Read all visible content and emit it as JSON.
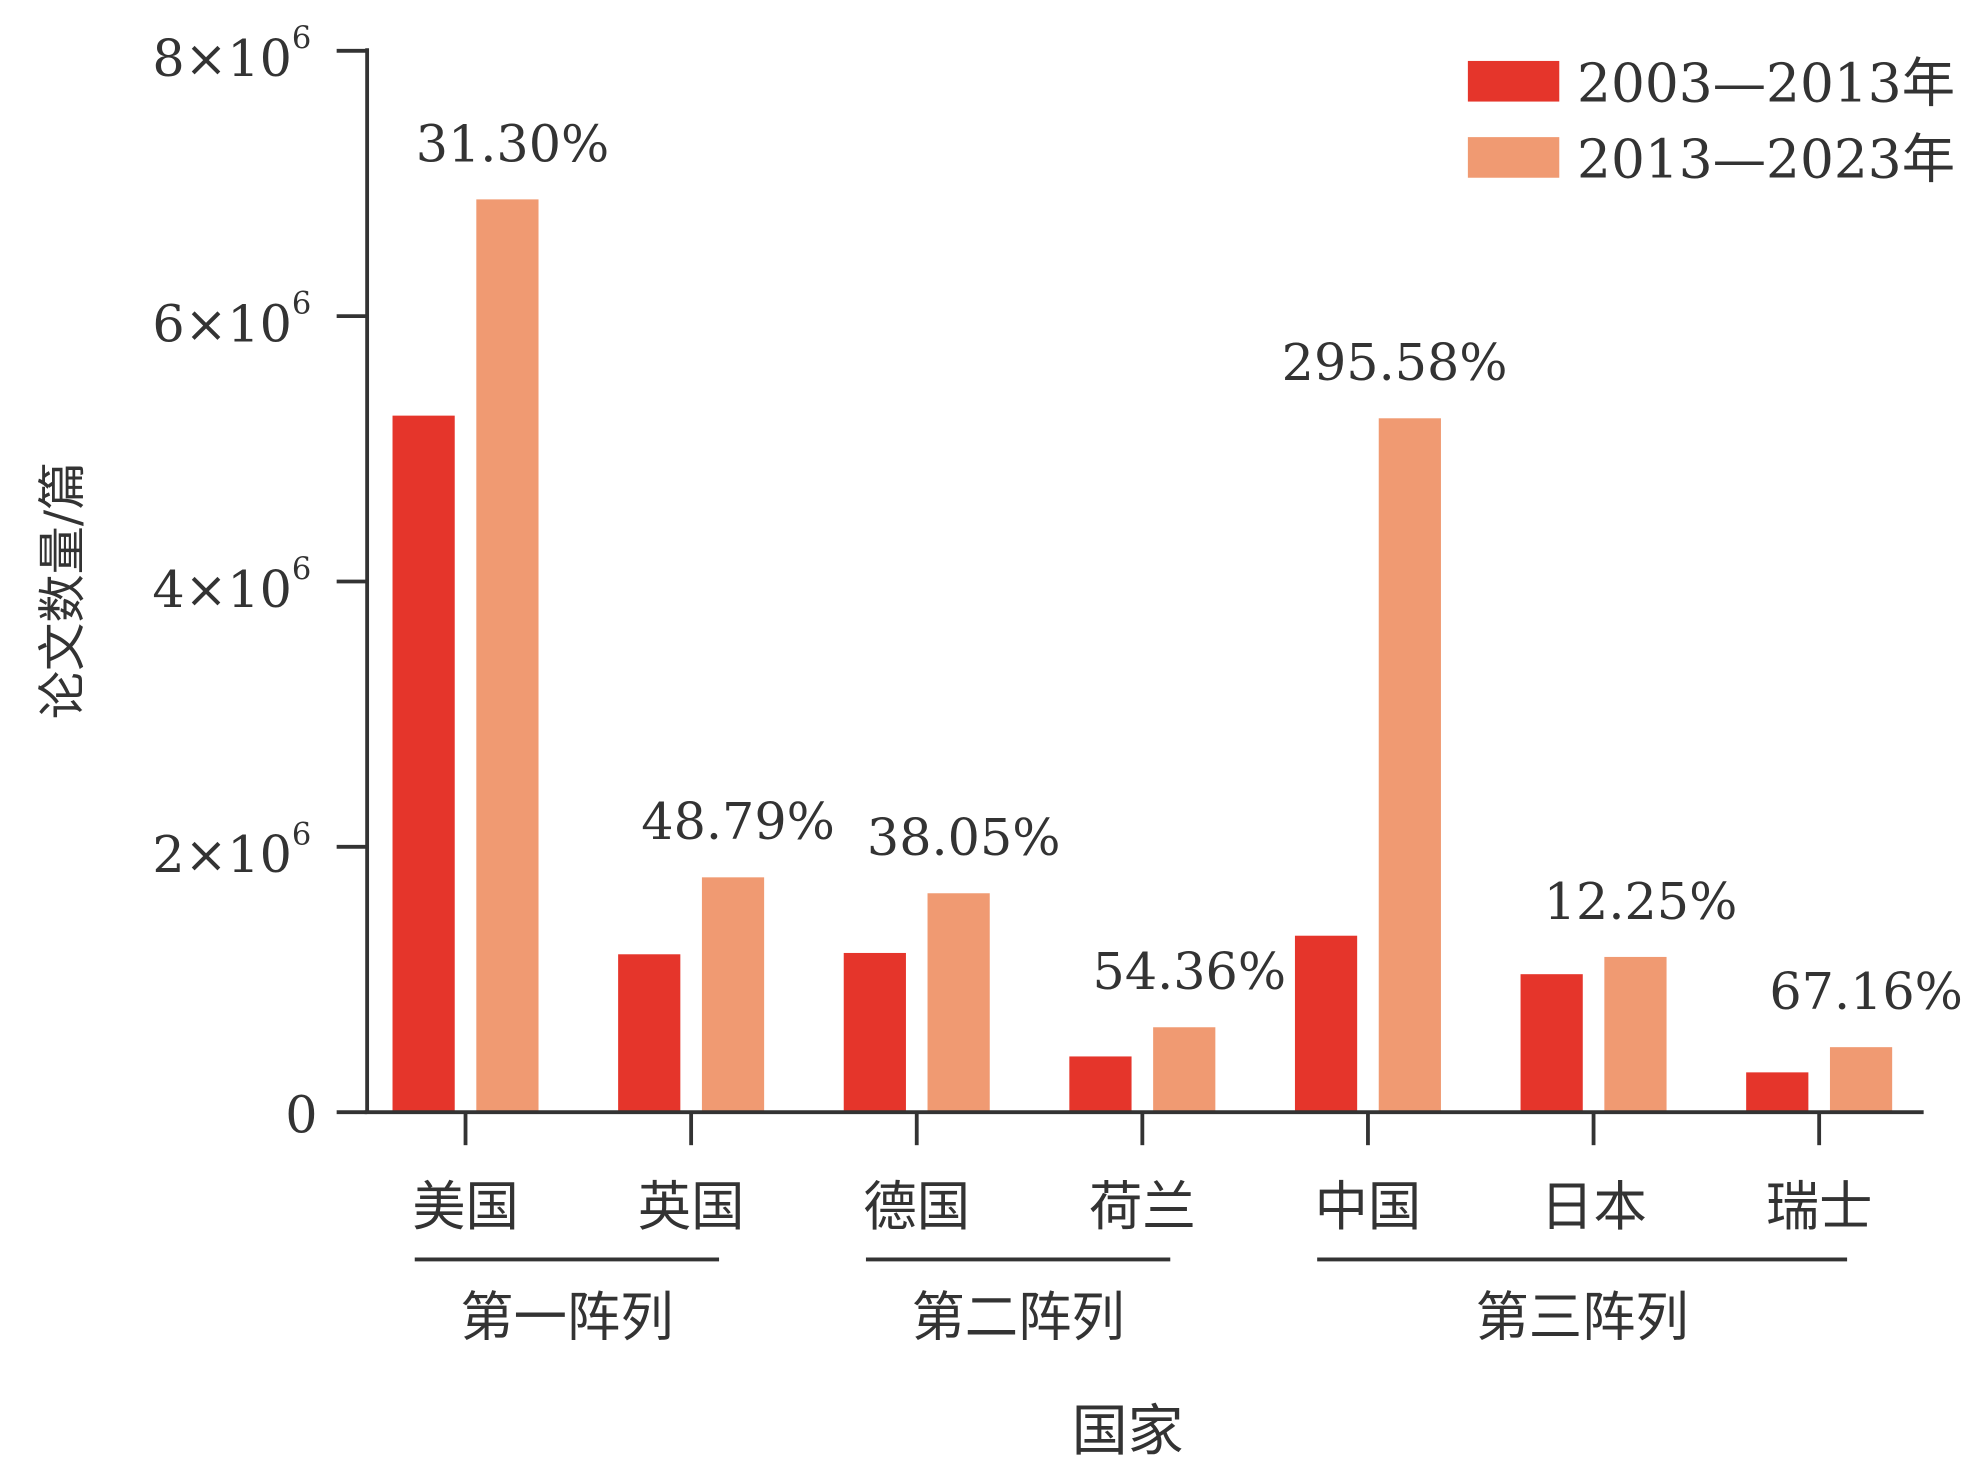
{
  "chart_data": {
    "type": "bar",
    "title": "",
    "xlabel": "国家",
    "ylabel": "论文数量/篇",
    "ylim": [
      0,
      8000000
    ],
    "yticks": [
      {
        "value": 0,
        "label": "0"
      },
      {
        "value": 2000000,
        "base": "2×10",
        "exp": "6"
      },
      {
        "value": 4000000,
        "base": "4×10",
        "exp": "6"
      },
      {
        "value": 6000000,
        "base": "6×10",
        "exp": "6"
      },
      {
        "value": 8000000,
        "base": "8×10",
        "exp": "6"
      }
    ],
    "categories": [
      "美国",
      "英国",
      "德国",
      "荷兰",
      "中国",
      "日本",
      "瑞士"
    ],
    "series": [
      {
        "name": "2003—2013年",
        "color": "#e5352b",
        "values": [
          5250000,
          1190000,
          1200000,
          420000,
          1330000,
          1040000,
          300000
        ]
      },
      {
        "name": "2013—2023年",
        "color": "#f09a72",
        "values": [
          6880000,
          1770000,
          1650000,
          640000,
          5230000,
          1170000,
          490000
        ]
      }
    ],
    "growth_labels": [
      "31.30%",
      "48.79%",
      "38.05%",
      "54.36%",
      "295.58%",
      "12.25%",
      "67.16%"
    ],
    "groups": [
      {
        "label": "第一阵列",
        "from": 0,
        "to": 1
      },
      {
        "label": "第二阵列",
        "from": 2,
        "to": 3
      },
      {
        "label": "第三阵列",
        "from": 4,
        "to": 6
      }
    ],
    "legend_position": "top-right",
    "grid": false
  }
}
